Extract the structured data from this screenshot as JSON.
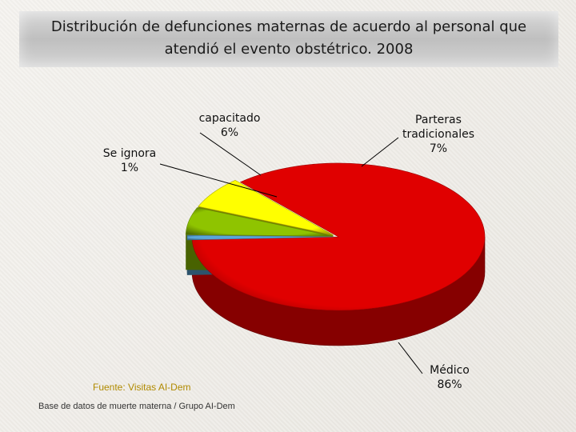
{
  "title": {
    "line1": "Distribución de defunciones maternas de acuerdo al personal que",
    "line2": "atendió el evento obstétrico. 2008"
  },
  "chart_data": {
    "type": "pie",
    "title": "Distribución de defunciones maternas de acuerdo al personal que atendió el evento obstétrico. 2008",
    "slices": [
      {
        "label": [
          "Médico"
        ],
        "value": 86,
        "value_label": "86%",
        "color": "#e00000"
      },
      {
        "label": [
          "Se ignora"
        ],
        "value": 1,
        "value_label": "1%",
        "color": "#5aa6d8"
      },
      {
        "label": [
          "capacitado"
        ],
        "value": 6,
        "value_label": "6%",
        "color": "#8fc400"
      },
      {
        "label": [
          "Parteras",
          "tradicionales"
        ],
        "value": 7,
        "value_label": "7%",
        "color": "#ffff00"
      }
    ],
    "style": "3d-exploded",
    "legend": "none"
  },
  "footer": {
    "source": "Fuente: Visitas AI-Dem",
    "database": "Base de datos de muerte materna / Grupo AI-Dem"
  }
}
